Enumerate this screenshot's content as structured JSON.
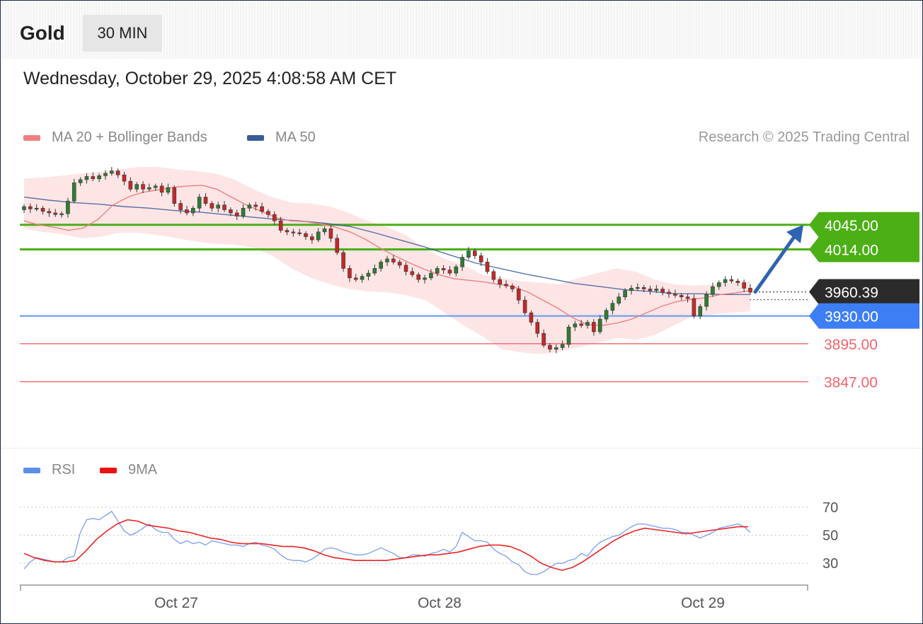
{
  "header": {
    "instrument": "Gold",
    "timeframe": "30 MIN",
    "datetime": "Wednesday, October 29, 2025 4:08:58 AM CET"
  },
  "legend": {
    "ma20_label": "MA 20 + Bollinger Bands",
    "ma50_label": "MA 50",
    "copyright": "Research © 2025 Trading Central",
    "rsi_label": "RSI",
    "rsi_ma_label": "9MA"
  },
  "colors": {
    "resistance": "#4caf16",
    "support": "#3d7ef5",
    "pivot_red": "#f5626a",
    "ma20": "#f08080",
    "ma50": "#3a5a9a",
    "band_fill": "#fde0e2",
    "candle_up": "#2e7d32",
    "candle_down": "#c62828",
    "arrow": "#2e64b0",
    "current_price_bg": "#2b2b2b"
  },
  "chart_data": [
    {
      "type": "candlestick",
      "instrument": "Gold",
      "timeframe": "30 MIN",
      "ylim": [
        3810,
        4118
      ],
      "x_ticks": [
        "Oct 27",
        "Oct 28",
        "Oct 29"
      ],
      "levels": [
        {
          "value": 4045.0,
          "label": "4045.00",
          "kind": "resistance"
        },
        {
          "value": 4014.0,
          "label": "4014.00",
          "kind": "resistance"
        },
        {
          "value": 3960.39,
          "label": "3960.39",
          "kind": "current"
        },
        {
          "value": 3930.0,
          "label": "3930.00",
          "kind": "support"
        },
        {
          "value": 3895.0,
          "label": "3895.00",
          "kind": "support_red"
        },
        {
          "value": 3847.0,
          "label": "3847.00",
          "kind": "support_red"
        }
      ],
      "close": [
        4068,
        4065,
        4066,
        4062,
        4060,
        4058,
        4059,
        4075,
        4098,
        4102,
        4106,
        4103,
        4107,
        4110,
        4113,
        4108,
        4100,
        4090,
        4096,
        4090,
        4092,
        4094,
        4086,
        4092,
        4072,
        4064,
        4060,
        4066,
        4080,
        4072,
        4066,
        4070,
        4064,
        4060,
        4056,
        4066,
        4070,
        4068,
        4062,
        4058,
        4050,
        4038,
        4036,
        4035,
        4034,
        4030,
        4026,
        4036,
        4040,
        4028,
        4010,
        3990,
        3978,
        3976,
        3980,
        3984,
        3990,
        3998,
        4002,
        3998,
        3994,
        3986,
        3982,
        3976,
        3978,
        3984,
        3990,
        3988,
        3984,
        3992,
        4004,
        4012,
        4006,
        3998,
        3986,
        3976,
        3970,
        3968,
        3964,
        3950,
        3934,
        3922,
        3908,
        3893,
        3888,
        3890,
        3894,
        3916,
        3920,
        3918,
        3922,
        3910,
        3926,
        3937,
        3946,
        3954,
        3962,
        3965,
        3966,
        3964,
        3962,
        3964,
        3960,
        3958,
        3956,
        3954,
        3952,
        3930,
        3942,
        3957,
        3967,
        3972,
        3976,
        3974,
        3972,
        3965,
        3960
      ],
      "ma20": [
        4050,
        4045,
        4042,
        4038,
        4041,
        4052,
        4070,
        4080,
        4086,
        4089,
        4092,
        4094,
        4095,
        4090,
        4080,
        4070,
        4062,
        4054,
        4050,
        4049,
        4046,
        4042,
        4036,
        4027,
        4016,
        4006,
        3997,
        3989,
        3982,
        3977,
        3975,
        3973,
        3970,
        3967,
        3960,
        3950,
        3940,
        3928,
        3919,
        3918,
        3921,
        3926,
        3934,
        3942,
        3948,
        3951,
        3953,
        3957,
        3959,
        3962
      ],
      "ma50": [
        4080,
        4076,
        4073,
        4071,
        4068,
        4066,
        4063,
        4061,
        4058,
        4055,
        4052,
        4050,
        4047,
        4043,
        4035,
        4026,
        4017,
        4007,
        3997,
        3990,
        3983,
        3977,
        3971,
        3967,
        3963,
        3961,
        3958,
        3958,
        3957,
        3957
      ],
      "bb_upper": [
        4103,
        4105,
        4107,
        4110,
        4112,
        4115,
        4118,
        4118,
        4115,
        4113,
        4110,
        4102,
        4090,
        4080,
        4073,
        4072,
        4068,
        4060,
        4050,
        4042,
        4032,
        4014,
        4002,
        3994,
        3982,
        3978,
        3974,
        3972,
        3970,
        3978,
        3984,
        3990,
        3986,
        3976,
        3970,
        3968,
        3970,
        3972,
        3974
      ],
      "bb_lower": [
        4040,
        4036,
        4033,
        4028,
        4030,
        4035,
        4035,
        4032,
        4028,
        4024,
        4021,
        4020,
        4016,
        4006,
        3990,
        3978,
        3970,
        3964,
        3961,
        3960,
        3956,
        3950,
        3934,
        3918,
        3904,
        3888,
        3884,
        3882,
        3885,
        3890,
        3896,
        3902,
        3900,
        3906,
        3918,
        3930,
        3932,
        3934,
        3936
      ]
    },
    {
      "type": "line",
      "title": "RSI",
      "ylim": [
        20,
        82
      ],
      "y_ticks": [
        30,
        50,
        70
      ],
      "series": [
        {
          "name": "RSI",
          "values": [
            26,
            31,
            34,
            33,
            32,
            31,
            31,
            34,
            35,
            52,
            61,
            62,
            61,
            64,
            67,
            60,
            53,
            50,
            52,
            55,
            58,
            54,
            52,
            52,
            47,
            44,
            46,
            44,
            45,
            43,
            46,
            45,
            44,
            43,
            43,
            42,
            44,
            45,
            43,
            42,
            40,
            36,
            33,
            32,
            32,
            31,
            33,
            36,
            40,
            41,
            40,
            38,
            37,
            36,
            36,
            37,
            39,
            41,
            39,
            37,
            34,
            34,
            36,
            36,
            35,
            37,
            38,
            40,
            38,
            42,
            52,
            49,
            46,
            46,
            45,
            40,
            37,
            35,
            31,
            29,
            24,
            22,
            22,
            24,
            27,
            30,
            30,
            32,
            33,
            37,
            35,
            41,
            45,
            47,
            49,
            50,
            53,
            56,
            58,
            58,
            57,
            56,
            55,
            55,
            54,
            52,
            52,
            50,
            48,
            50,
            52,
            55,
            56,
            57,
            58,
            56,
            52
          ]
        },
        {
          "name": "9MA",
          "values": [
            37,
            34,
            32,
            31,
            31,
            32,
            39,
            47,
            53,
            58,
            61,
            60,
            57,
            56,
            55,
            53,
            52,
            50,
            48,
            47,
            45,
            44,
            44,
            44,
            43,
            42,
            42,
            41,
            39,
            36,
            34,
            33,
            32,
            32,
            32,
            32,
            33,
            34,
            35,
            36,
            36,
            37,
            38,
            40,
            42,
            43,
            43,
            42,
            39,
            35,
            30,
            27,
            25,
            27,
            31,
            36,
            41,
            46,
            50,
            53,
            55,
            54,
            53,
            52,
            51,
            52,
            53,
            54,
            55,
            56,
            56
          ]
        }
      ]
    }
  ]
}
